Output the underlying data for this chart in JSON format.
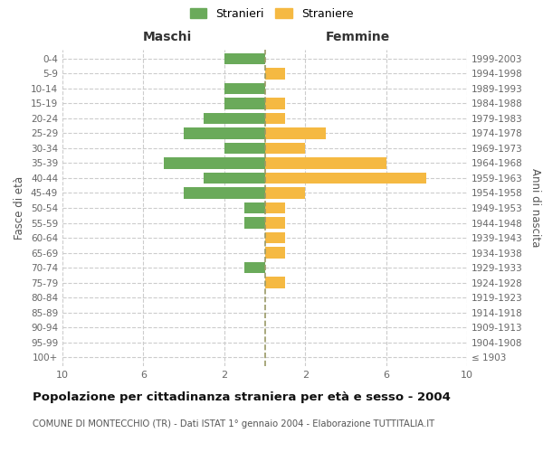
{
  "age_groups": [
    "100+",
    "95-99",
    "90-94",
    "85-89",
    "80-84",
    "75-79",
    "70-74",
    "65-69",
    "60-64",
    "55-59",
    "50-54",
    "45-49",
    "40-44",
    "35-39",
    "30-34",
    "25-29",
    "20-24",
    "15-19",
    "10-14",
    "5-9",
    "0-4"
  ],
  "birth_years": [
    "≤ 1903",
    "1904-1908",
    "1909-1913",
    "1914-1918",
    "1919-1923",
    "1924-1928",
    "1929-1933",
    "1934-1938",
    "1939-1943",
    "1944-1948",
    "1949-1953",
    "1954-1958",
    "1959-1963",
    "1964-1968",
    "1969-1973",
    "1974-1978",
    "1979-1983",
    "1984-1988",
    "1989-1993",
    "1994-1998",
    "1999-2003"
  ],
  "maschi": [
    0,
    0,
    0,
    0,
    0,
    0,
    1,
    0,
    0,
    1,
    1,
    4,
    3,
    5,
    2,
    4,
    3,
    2,
    2,
    0,
    2
  ],
  "femmine": [
    0,
    0,
    0,
    0,
    0,
    1,
    0,
    1,
    1,
    1,
    1,
    2,
    8,
    6,
    2,
    3,
    1,
    1,
    0,
    1,
    0
  ],
  "color_maschi": "#6aaa5a",
  "color_femmine": "#f5b942",
  "title_main": "Popolazione per cittadinanza straniera per età e sesso - 2004",
  "title_sub": "COMUNE DI MONTECCHIO (TR) - Dati ISTAT 1° gennaio 2004 - Elaborazione TUTTITALIA.IT",
  "legend_maschi": "Stranieri",
  "legend_femmine": "Straniere",
  "label_maschi": "Maschi",
  "label_femmine": "Femmine",
  "ylabel_left": "Fasce di età",
  "ylabel_right": "Anni di nascita",
  "xlim": 10,
  "xtick_positions": [
    -10,
    -6,
    -2,
    2,
    6,
    10
  ],
  "xtick_labels": [
    "10",
    "6",
    "2",
    "2",
    "6",
    "10"
  ],
  "background_color": "#ffffff",
  "grid_color": "#cccccc",
  "center_line_color": "#999966"
}
